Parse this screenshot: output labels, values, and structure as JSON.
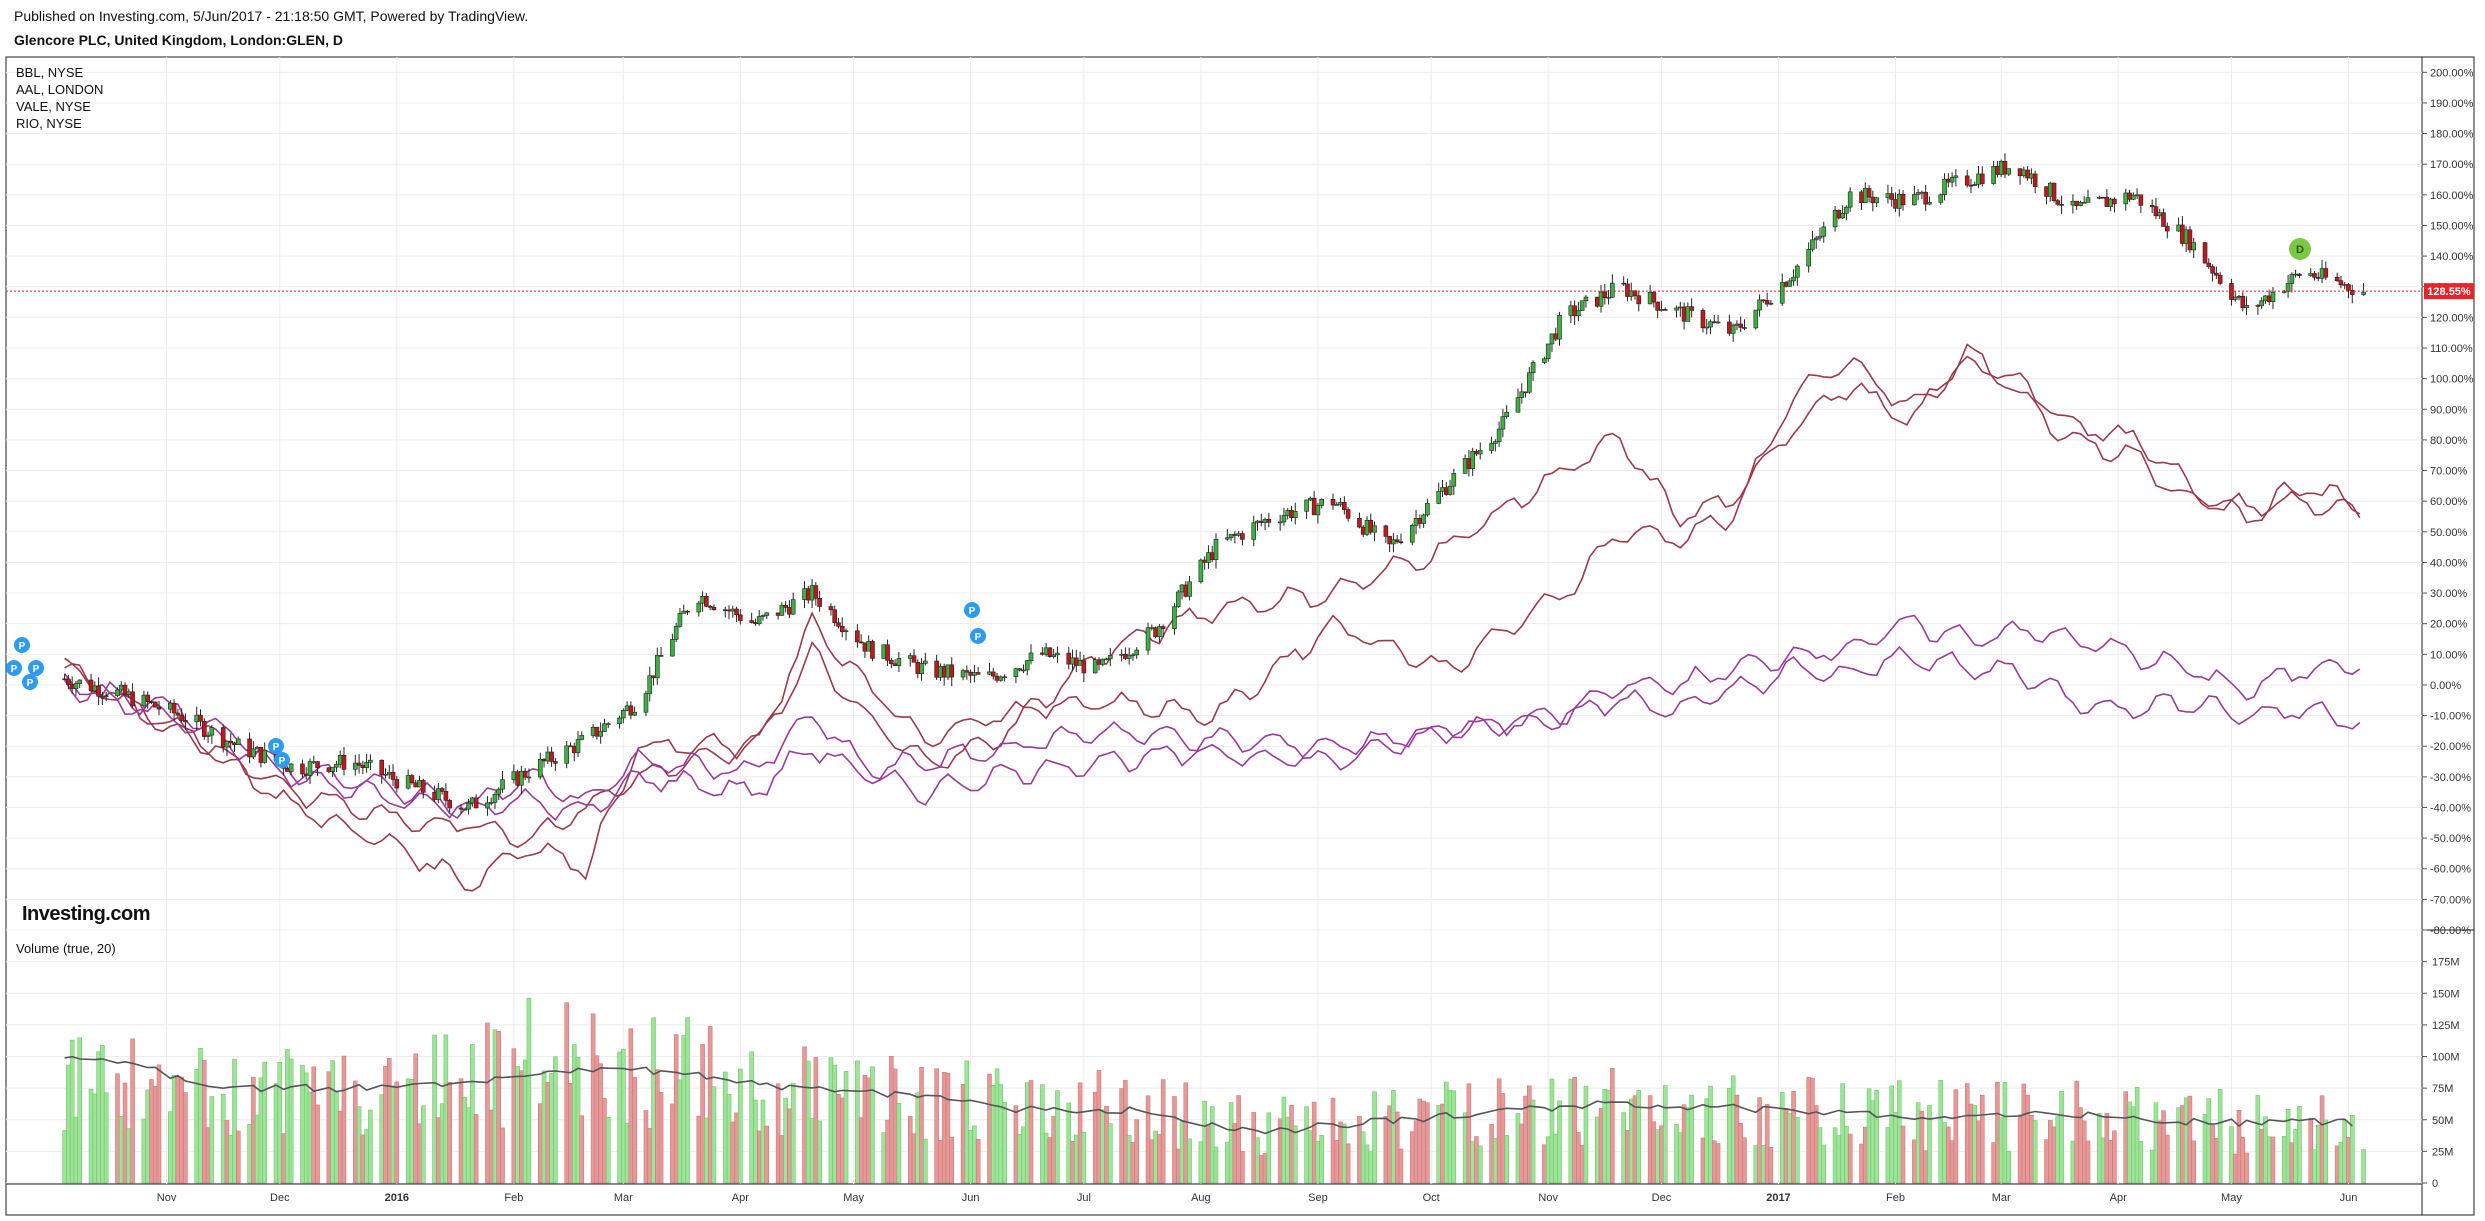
{
  "header": {
    "published": "Published on Investing.com, 5/Jun/2017 - 21:18:50 GMT, Powered by TradingView.",
    "symbol": "Glencore PLC, United Kingdom, London:GLEN, D"
  },
  "legend": [
    "BBL, NYSE",
    "AAL, LONDON",
    "VALE, NYSE",
    "RIO, NYSE"
  ],
  "watermark": "Investing.com",
  "current_label": "128.55%",
  "volume_title": "Volume (true, 20)",
  "marker_p": "P",
  "marker_d": "D",
  "colors": {
    "up": "#3cb043",
    "down": "#c0181f",
    "vol_up": "#9fe39a",
    "vol_down": "#e59a9a",
    "comp_red": "#9b3a4a",
    "comp_purple": "#9a3a9a",
    "current": "#e8232a",
    "marker_p": "#2d9cf0",
    "marker_d": "#7ac943"
  },
  "chart_data": [
    {
      "type": "candlestick",
      "title": "Glencore PLC, United Kingdom, London:GLEN, D",
      "ylabel": "%",
      "ylim": [
        -80,
        205
      ],
      "yticks": [
        200,
        190,
        180,
        170,
        160,
        150,
        140,
        130,
        120,
        110,
        100,
        90,
        80,
        70,
        60,
        50,
        40,
        30,
        20,
        10,
        0,
        -10,
        -20,
        -30,
        -40,
        -50,
        -60,
        -70,
        -80
      ],
      "ytick_labels": [
        "200.00%",
        "190.00%",
        "180.00%",
        "170.00%",
        "160.00%",
        "150.00%",
        "140.00%",
        "130.00%",
        "120.00%",
        "110.00%",
        "100.00%",
        "90.00%",
        "80.00%",
        "70.00%",
        "60.00%",
        "50.00%",
        "40.00%",
        "30.00%",
        "20.00%",
        "10.00%",
        "0.00%",
        "-10.00%",
        "-20.00%",
        "-30.00%",
        "-40.00%",
        "-50.00%",
        "-60.00%",
        "-70.00%",
        "-80.00%"
      ],
      "xticks": [
        "Nov",
        "Dec",
        "2016",
        "Feb",
        "Mar",
        "Apr",
        "May",
        "Jun",
        "Jul",
        "Aug",
        "Sep",
        "Oct",
        "Nov",
        "Dec",
        "2017",
        "Feb",
        "Mar",
        "Apr",
        "May",
        "Jun"
      ],
      "last_value": 128.55,
      "main_series": {
        "name": "GLEN",
        "x": [
          "2015-10-05",
          "2015-10-20",
          "2015-11-05",
          "2015-11-20",
          "2015-12-05",
          "2015-12-20",
          "2016-01-05",
          "2016-01-20",
          "2016-02-05",
          "2016-02-20",
          "2016-03-05",
          "2016-03-20",
          "2016-04-05",
          "2016-04-20",
          "2016-05-05",
          "2016-05-20",
          "2016-06-05",
          "2016-06-20",
          "2016-07-05",
          "2016-07-20",
          "2016-08-05",
          "2016-08-20",
          "2016-09-05",
          "2016-09-20",
          "2016-10-05",
          "2016-10-20",
          "2016-11-05",
          "2016-11-20",
          "2016-12-05",
          "2016-12-20",
          "2017-01-05",
          "2017-01-20",
          "2017-02-05",
          "2017-02-20",
          "2017-03-05",
          "2017-03-20",
          "2017-04-05",
          "2017-04-20",
          "2017-05-05",
          "2017-05-20",
          "2017-06-05"
        ],
        "values": [
          2,
          -3,
          -10,
          -20,
          -27,
          -25,
          -33,
          -40,
          -28,
          -18,
          -5,
          30,
          20,
          30,
          12,
          5,
          2,
          10,
          5,
          18,
          45,
          55,
          60,
          45,
          65,
          85,
          120,
          130,
          122,
          115,
          135,
          160,
          158,
          165,
          170,
          155,
          160,
          145,
          122,
          135,
          128.55
        ]
      },
      "series": [
        {
          "x": [
            "2015-10-05",
            "2015-11-05",
            "2015-12-05",
            "2016-01-05",
            "2016-01-20",
            "2016-02-05",
            "2016-02-20",
            "2016-03-05",
            "2016-04-05",
            "2016-04-20",
            "2016-05-05",
            "2016-05-20",
            "2016-06-05",
            "2016-07-05",
            "2016-08-05",
            "2016-09-05",
            "2016-10-05",
            "2016-11-05",
            "2016-11-20",
            "2016-12-05",
            "2016-12-20",
            "2017-01-05",
            "2017-01-20",
            "2017-02-05",
            "2017-02-20",
            "2017-03-05",
            "2017-03-20",
            "2017-04-05",
            "2017-04-20",
            "2017-05-05",
            "2017-05-20",
            "2017-06-05"
          ],
          "values": [
            5,
            -15,
            -40,
            -55,
            -65,
            -52,
            -60,
            -20,
            -20,
            10,
            -12,
            -25,
            -20,
            10,
            25,
            30,
            45,
            70,
            80,
            55,
            60,
            85,
            98,
            85,
            110,
            95,
            80,
            75,
            60,
            58,
            60,
            55
          ]
        },
        {
          "x": [
            "2015-10-05",
            "2015-11-05",
            "2015-12-05",
            "2016-01-05",
            "2016-01-20",
            "2016-02-05",
            "2016-02-20",
            "2016-03-05",
            "2016-04-05",
            "2016-04-20",
            "2016-05-05",
            "2016-05-20",
            "2016-06-05",
            "2016-07-05",
            "2016-08-05",
            "2016-09-05",
            "2016-10-05",
            "2016-11-05",
            "2016-11-20",
            "2016-12-05",
            "2016-12-20",
            "2017-01-05",
            "2017-01-20",
            "2017-02-05",
            "2017-02-20",
            "2017-03-05",
            "2017-03-20",
            "2017-04-05",
            "2017-04-20",
            "2017-05-05",
            "2017-05-20",
            "2017-06-05"
          ],
          "values": [
            5,
            -15,
            -35,
            -45,
            -45,
            -50,
            -40,
            -30,
            -20,
            20,
            0,
            -18,
            -10,
            -5,
            -10,
            20,
            5,
            30,
            50,
            48,
            55,
            95,
            105,
            90,
            105,
            100,
            85,
            80,
            65,
            55,
            65,
            58
          ]
        },
        {
          "x": [
            "2015-10-05",
            "2015-11-05",
            "2015-12-05",
            "2016-01-05",
            "2016-01-20",
            "2016-02-05",
            "2016-02-20",
            "2016-03-05",
            "2016-04-05",
            "2016-04-20",
            "2016-05-05",
            "2016-05-20",
            "2016-06-05",
            "2016-07-05",
            "2016-08-05",
            "2016-09-05",
            "2016-10-05",
            "2016-11-05",
            "2016-11-20",
            "2016-12-05",
            "2016-12-20",
            "2017-01-05",
            "2017-01-20",
            "2017-02-05",
            "2017-02-20",
            "2017-03-05",
            "2017-03-20",
            "2017-04-05",
            "2017-04-20",
            "2017-05-05",
            "2017-05-20",
            "2017-06-05"
          ],
          "values": [
            0,
            -8,
            -28,
            -35,
            -40,
            -30,
            -38,
            -25,
            -28,
            -10,
            -28,
            -25,
            -22,
            -15,
            -18,
            -20,
            -15,
            -10,
            0,
            0,
            5,
            10,
            12,
            20,
            15,
            18,
            15,
            10,
            5,
            -2,
            5,
            8
          ]
        },
        {
          "x": [
            "2015-10-05",
            "2015-11-05",
            "2015-12-05",
            "2016-01-05",
            "2016-01-20",
            "2016-02-05",
            "2016-02-20",
            "2016-03-05",
            "2016-04-05",
            "2016-04-20",
            "2016-05-05",
            "2016-05-20",
            "2016-06-05",
            "2016-07-05",
            "2016-08-05",
            "2016-09-05",
            "2016-10-05",
            "2016-11-05",
            "2016-11-20",
            "2016-12-05",
            "2016-12-20",
            "2017-01-05",
            "2017-01-20",
            "2017-02-05",
            "2017-02-20",
            "2017-03-05",
            "2017-03-20",
            "2017-04-05",
            "2017-04-20",
            "2017-05-05",
            "2017-05-20",
            "2017-06-05"
          ],
          "values": [
            0,
            -12,
            -30,
            -38,
            -40,
            -38,
            -42,
            -30,
            -35,
            -20,
            -30,
            -35,
            -30,
            -25,
            -22,
            -25,
            -15,
            -10,
            -5,
            -8,
            -2,
            5,
            3,
            10,
            5,
            5,
            -5,
            -8,
            -5,
            -10,
            -8,
            -12
          ]
        }
      ]
    },
    {
      "type": "bar",
      "title": "Volume (true, 20)",
      "ylim": [
        0,
        185000000
      ],
      "yticks": [
        0,
        25000000,
        50000000,
        75000000,
        100000000,
        125000000,
        150000000,
        175000000
      ],
      "ytick_labels": [
        "0",
        "25M",
        "50M",
        "75M",
        "100M",
        "125M",
        "150M",
        "175M"
      ],
      "x": [
        "2015-10",
        "2015-11",
        "2015-12",
        "2016-01",
        "2016-02",
        "2016-03",
        "2016-04",
        "2016-05",
        "2016-06",
        "2016-07",
        "2016-08",
        "2016-09",
        "2016-10",
        "2016-11",
        "2016-12",
        "2017-01",
        "2017-02",
        "2017-03",
        "2017-04",
        "2017-05"
      ],
      "values": [
        85000000,
        70000000,
        72000000,
        85000000,
        105000000,
        90000000,
        75000000,
        75000000,
        60000000,
        60000000,
        45000000,
        50000000,
        55000000,
        65000000,
        65000000,
        55000000,
        55000000,
        55000000,
        50000000,
        50000000
      ],
      "ma_values": [
        100000000,
        75000000,
        75000000,
        78000000,
        90000000,
        88000000,
        75000000,
        70000000,
        58000000,
        57000000,
        40000000,
        48000000,
        55000000,
        63000000,
        60000000,
        55000000,
        52000000,
        55000000,
        48000000,
        48000000
      ]
    }
  ]
}
